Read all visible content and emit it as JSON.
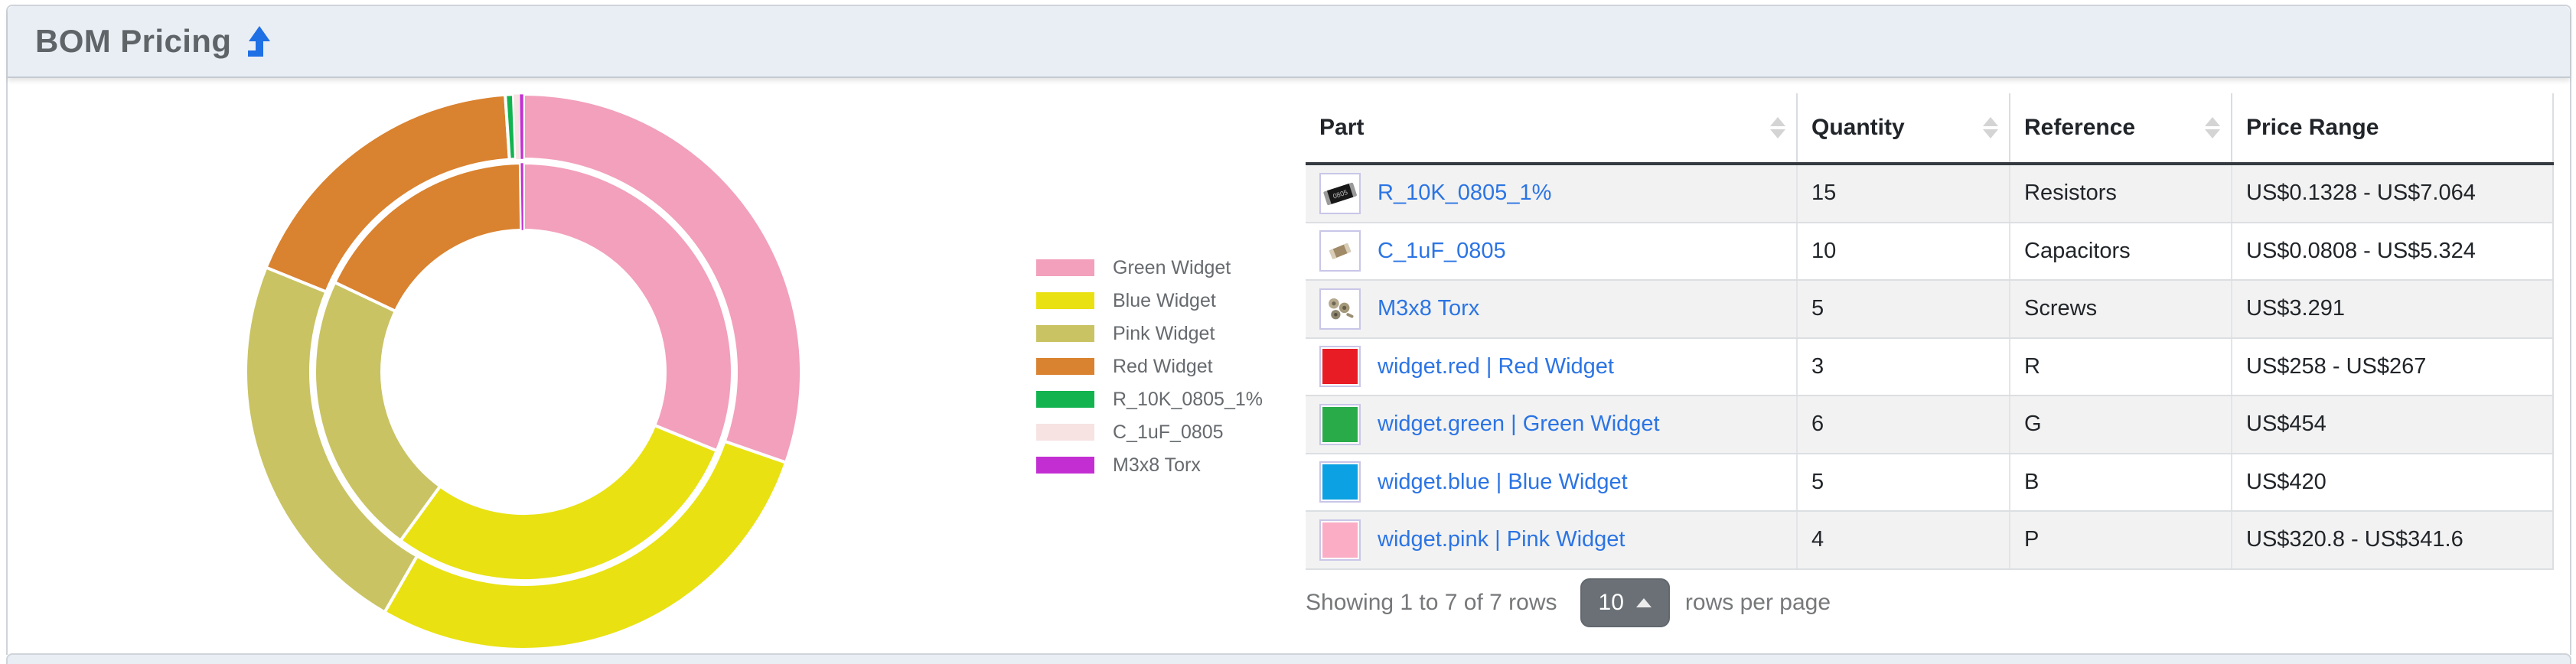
{
  "panel": {
    "title": "BOM Pricing"
  },
  "icons": {
    "title_arrow": "up-arrow",
    "column_sort": "up-down-arrows",
    "page_size_caret": "caret-up"
  },
  "colors": {
    "header_bg": "#e9eef5",
    "accent_link": "#2b74e4",
    "title_arrow_blue": "#1f6fe5",
    "page_size_button_bg": "#6a7076"
  },
  "chart_data": {
    "type": "donut",
    "title": "",
    "labels": [
      "Green Widget",
      "Blue Widget",
      "Pink Widget",
      "Red Widget",
      "R_10K_0805_1%",
      "C_1uF_0805",
      "M3x8 Torx"
    ],
    "colors": [
      "#f2a0bb",
      "#e9e112",
      "#c9c363",
      "#d9822f",
      "#13b350",
      "#f6e3e2",
      "#c32ed2"
    ],
    "rings": [
      {
        "name": "inner (min price US$)",
        "values": [
          454,
          420,
          320.8,
          258,
          0.1328,
          0.0808,
          3.291
        ]
      },
      {
        "name": "outer (max price US$)",
        "values": [
          454,
          420,
          341.6,
          267,
          7.064,
          5.324,
          3.291
        ]
      }
    ],
    "start_angle_deg": 0,
    "direction": "clockwise",
    "legend_position": "right"
  },
  "table": {
    "columns": [
      {
        "label": "Part",
        "sortable": true
      },
      {
        "label": "Quantity",
        "sortable": true
      },
      {
        "label": "Reference",
        "sortable": true
      },
      {
        "label": "Price Range",
        "sortable": false
      }
    ],
    "rows": [
      {
        "icon": "resistor-photo",
        "swatch": "",
        "part": "R_10K_0805_1%",
        "quantity": "15",
        "reference": "Resistors",
        "price_range": "US$0.1328 - US$7.064"
      },
      {
        "icon": "capacitor-photo",
        "swatch": "",
        "part": "C_1uF_0805",
        "quantity": "10",
        "reference": "Capacitors",
        "price_range": "US$0.0808 - US$5.324"
      },
      {
        "icon": "screws-photo",
        "swatch": "",
        "part": "M3x8 Torx",
        "quantity": "5",
        "reference": "Screws",
        "price_range": "US$3.291"
      },
      {
        "icon": "color-swatch",
        "swatch": "#e81c24",
        "part": "widget.red | Red Widget",
        "quantity": "3",
        "reference": "R",
        "price_range": "US$258 - US$267"
      },
      {
        "icon": "color-swatch",
        "swatch": "#2aab4a",
        "part": "widget.green | Green Widget",
        "quantity": "6",
        "reference": "G",
        "price_range": "US$454"
      },
      {
        "icon": "color-swatch",
        "swatch": "#0ba1e2",
        "part": "widget.blue | Blue Widget",
        "quantity": "5",
        "reference": "B",
        "price_range": "US$420"
      },
      {
        "icon": "color-swatch",
        "swatch": "#fbadc6",
        "part": "widget.pink | Pink Widget",
        "quantity": "4",
        "reference": "P",
        "price_range": "US$320.8 - US$341.6"
      }
    ]
  },
  "pagination": {
    "summary": "Showing 1 to 7 of 7 rows",
    "page_size": "10",
    "rows_per_page_label": "rows per page"
  }
}
